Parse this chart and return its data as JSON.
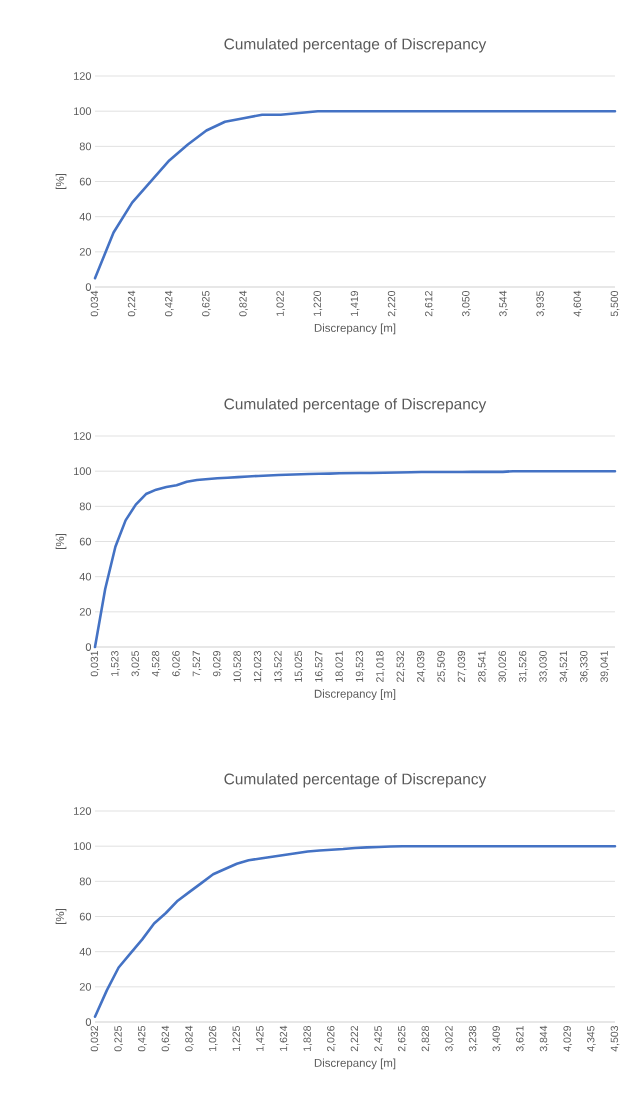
{
  "chart_data": [
    {
      "type": "line",
      "title": "Cumulated percentage of Discrepancy",
      "xlabel": "Discrepancy [m]",
      "ylabel": "[%]",
      "color": "#4472c4",
      "grid": "y",
      "ylim": [
        0,
        120
      ],
      "yticks": [
        0,
        20,
        40,
        60,
        80,
        100,
        120
      ],
      "categories": [
        "0,034",
        null,
        "0,224",
        null,
        "0,424",
        null,
        "0,625",
        null,
        "0,824",
        null,
        "1,022",
        null,
        "1,220",
        null,
        "1,419",
        null,
        "2,220",
        null,
        "2,612",
        null,
        "3,050",
        null,
        "3,544",
        null,
        "3,935",
        null,
        "4,604",
        null,
        "5,500"
      ],
      "values": [
        5,
        31,
        48,
        60,
        72,
        81,
        89,
        94,
        96,
        98,
        98,
        99,
        100,
        100,
        100,
        100,
        100,
        100,
        100,
        100,
        100,
        100,
        100,
        100,
        100,
        100,
        100,
        100,
        100
      ]
    },
    {
      "type": "line",
      "title": "Cumulated percentage of Discrepancy",
      "xlabel": "Discrepancy [m]",
      "ylabel": "[%]",
      "color": "#4472c4",
      "grid": "y",
      "ylim": [
        0,
        120
      ],
      "yticks": [
        0,
        20,
        40,
        60,
        80,
        100,
        120
      ],
      "categories": [
        "0,031",
        null,
        "1,523",
        null,
        "3,025",
        null,
        "4,528",
        null,
        "6,026",
        null,
        "7,527",
        null,
        "9,029",
        null,
        "10,528",
        null,
        "12,023",
        null,
        "13,522",
        null,
        "15,025",
        null,
        "16,527",
        null,
        "18,021",
        null,
        "19,523",
        null,
        "21,018",
        null,
        "22,532",
        null,
        "24,039",
        null,
        "25,509",
        null,
        "27,039",
        null,
        "28,541",
        null,
        "30,026",
        null,
        "31,526",
        null,
        "33,030",
        null,
        "34,521",
        null,
        "36,330",
        null,
        "39,041",
        null
      ],
      "values": [
        0,
        33,
        57,
        72,
        81,
        87,
        89.5,
        91,
        92,
        94,
        95,
        95.5,
        96,
        96.3,
        96.6,
        97,
        97.3,
        97.5,
        97.8,
        98,
        98.2,
        98.4,
        98.5,
        98.6,
        98.8,
        98.9,
        99,
        99,
        99.1,
        99.2,
        99.3,
        99.4,
        99.5,
        99.5,
        99.5,
        99.5,
        99.5,
        99.6,
        99.6,
        99.6,
        99.6,
        100,
        100,
        100,
        100,
        100,
        100,
        100,
        100,
        100,
        100,
        100
      ]
    },
    {
      "type": "line",
      "title": "Cumulated percentage of Discrepancy",
      "xlabel": "Discrepancy [m]",
      "ylabel": "[%]",
      "color": "#4472c4",
      "grid": "y",
      "ylim": [
        0,
        120
      ],
      "yticks": [
        0,
        20,
        40,
        60,
        80,
        100,
        120
      ],
      "categories": [
        "0,032",
        null,
        "0,225",
        null,
        "0,425",
        null,
        "0,624",
        null,
        "0,824",
        null,
        "1,026",
        null,
        "1,225",
        null,
        "1,425",
        null,
        "1,624",
        null,
        "1,828",
        null,
        "2,026",
        null,
        "2,222",
        null,
        "2,425",
        null,
        "2,625",
        null,
        "2,828",
        null,
        "3,022",
        null,
        "3,238",
        null,
        "3,409",
        null,
        "3,621",
        null,
        "3,844",
        null,
        "4,029",
        null,
        "4,345",
        null,
        "4,503"
      ],
      "values": [
        3,
        18,
        31,
        39,
        47,
        56,
        62,
        69,
        74,
        79,
        84,
        87,
        90,
        92,
        93,
        94,
        95,
        96,
        97,
        97.5,
        98,
        98.4,
        99,
        99.3,
        99.5,
        99.8,
        100,
        100,
        100,
        100,
        100,
        100,
        100,
        100,
        100,
        100,
        100,
        100,
        100,
        100,
        100,
        100,
        100,
        100,
        100
      ]
    }
  ]
}
